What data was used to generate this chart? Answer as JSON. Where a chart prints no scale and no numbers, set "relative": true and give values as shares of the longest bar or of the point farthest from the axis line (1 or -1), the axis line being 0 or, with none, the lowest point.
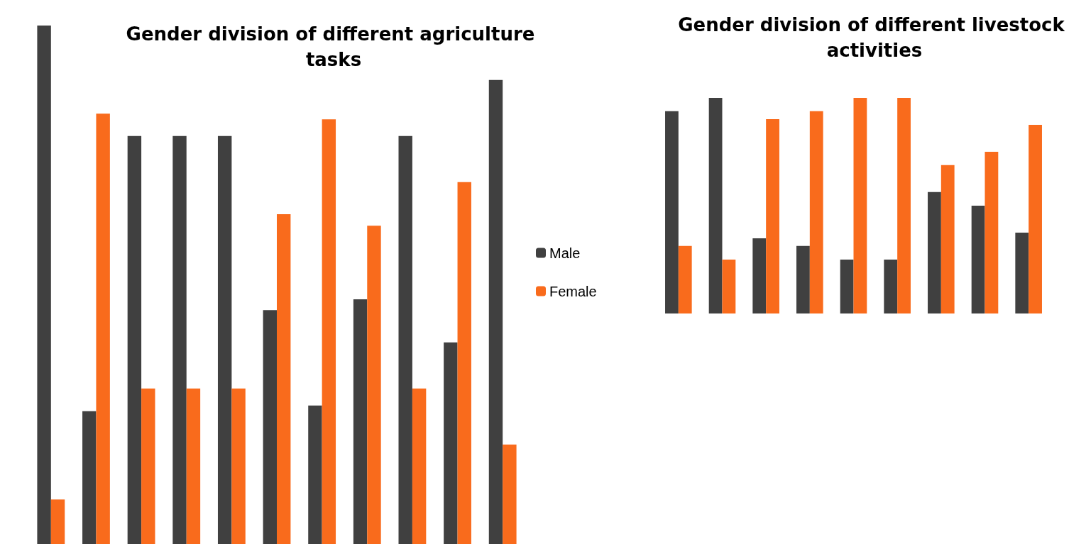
{
  "chart_data": [
    {
      "type": "bar",
      "title": "Gender division of different agriculture tasks",
      "categories": [
        null,
        null,
        null,
        null,
        null,
        null,
        null,
        null,
        null,
        null,
        null
      ],
      "relative": true,
      "tick_labels": false,
      "grid": false,
      "legend": "right",
      "series": [
        {
          "name": "Male",
          "color": "#404040",
          "values": [
            1,
            0.256,
            0.787,
            0.787,
            0.787,
            0.451,
            0.267,
            0.472,
            0.787,
            0.389,
            0.895
          ]
        },
        {
          "name": "Female",
          "color": "#f96b1c",
          "values": [
            0.086,
            0.83,
            0.3,
            0.3,
            0.3,
            0.636,
            0.819,
            0.614,
            0.3,
            0.698,
            0.192
          ]
        }
      ]
    },
    {
      "type": "bar",
      "title": "Gender division of different livestock activities",
      "categories": [
        null,
        null,
        null,
        null,
        null,
        null,
        null,
        null,
        null
      ],
      "relative": true,
      "tick_labels": false,
      "grid": false,
      "series": [
        {
          "color": "#404040",
          "values": [
            0.938,
            1,
            0.349,
            0.313,
            0.25,
            0.25,
            0.563,
            0.5,
            0.375
          ]
        },
        {
          "color": "#f96b1c",
          "values": [
            0.313,
            0.25,
            0.901,
            0.938,
            1,
            1,
            0.688,
            0.75,
            0.875
          ]
        }
      ]
    }
  ]
}
